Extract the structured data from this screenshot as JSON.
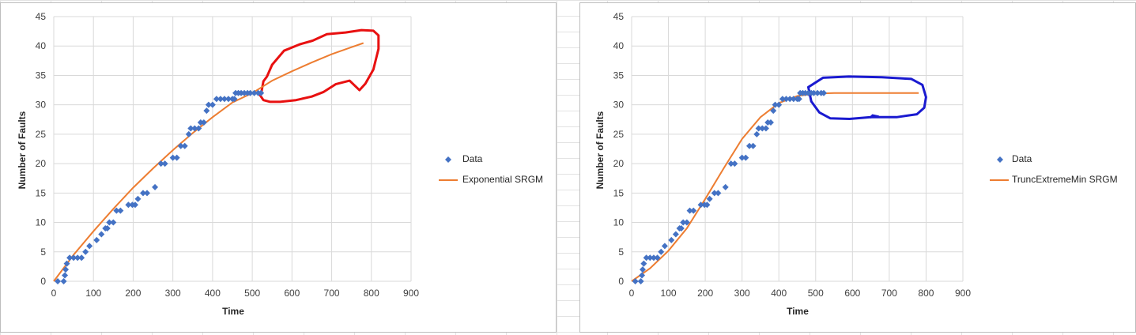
{
  "charts": [
    {
      "id": "left",
      "chart_data": {
        "type": "scatter",
        "title": "",
        "xlabel": "Time",
        "ylabel": "Number of Faults",
        "xlim": [
          0,
          900
        ],
        "ylim": [
          0,
          45
        ],
        "x_ticks": [
          "0",
          "100",
          "200",
          "300",
          "400",
          "500",
          "600",
          "700",
          "800",
          "900"
        ],
        "y_ticks": [
          "0",
          "5",
          "10",
          "15",
          "20",
          "25",
          "30",
          "35",
          "40",
          "45"
        ],
        "grid": true,
        "legend_position": "right",
        "series": [
          {
            "name": "Data",
            "kind": "scatter",
            "color": "#4472c4",
            "points": [
              [
                10,
                0
              ],
              [
                25,
                0
              ],
              [
                28,
                1
              ],
              [
                30,
                2
              ],
              [
                33,
                3
              ],
              [
                40,
                4
              ],
              [
                50,
                4
              ],
              [
                60,
                4
              ],
              [
                70,
                4
              ],
              [
                80,
                5
              ],
              [
                90,
                6
              ],
              [
                108,
                7
              ],
              [
                120,
                8
              ],
              [
                130,
                9
              ],
              [
                135,
                9
              ],
              [
                140,
                10
              ],
              [
                150,
                10
              ],
              [
                158,
                12
              ],
              [
                168,
                12
              ],
              [
                188,
                13
              ],
              [
                198,
                13
              ],
              [
                205,
                13
              ],
              [
                212,
                14
              ],
              [
                225,
                15
              ],
              [
                235,
                15
              ],
              [
                255,
                16
              ],
              [
                270,
                20
              ],
              [
                280,
                20
              ],
              [
                300,
                21
              ],
              [
                310,
                21
              ],
              [
                320,
                23
              ],
              [
                330,
                23
              ],
              [
                340,
                25
              ],
              [
                345,
                26
              ],
              [
                355,
                26
              ],
              [
                365,
                26
              ],
              [
                370,
                27
              ],
              [
                378,
                27
              ],
              [
                385,
                29
              ],
              [
                390,
                30
              ],
              [
                400,
                30
              ],
              [
                410,
                31
              ],
              [
                420,
                31
              ],
              [
                430,
                31
              ],
              [
                440,
                31
              ],
              [
                450,
                31
              ],
              [
                455,
                31
              ],
              [
                458,
                32
              ],
              [
                465,
                32
              ],
              [
                472,
                32
              ],
              [
                480,
                32
              ],
              [
                488,
                32
              ],
              [
                495,
                32
              ],
              [
                505,
                32
              ],
              [
                515,
                32
              ],
              [
                522,
                32
              ]
            ]
          },
          {
            "name": "Exponential SRGM",
            "kind": "line",
            "color": "#ed7d31",
            "points": [
              [
                0,
                0
              ],
              [
                50,
                4.5
              ],
              [
                100,
                8.5
              ],
              [
                150,
                12.3
              ],
              [
                200,
                15.9
              ],
              [
                250,
                19.2
              ],
              [
                300,
                22.3
              ],
              [
                350,
                25.2
              ],
              [
                400,
                27.9
              ],
              [
                450,
                30.4
              ],
              [
                500,
                32.0
              ],
              [
                550,
                34.1
              ],
              [
                600,
                35.7
              ],
              [
                650,
                37.2
              ],
              [
                700,
                38.6
              ],
              [
                750,
                39.8
              ],
              [
                780,
                40.5
              ]
            ]
          }
        ]
      },
      "annotation": {
        "color": "#e81010",
        "path": [
          [
            520,
            31.6
          ],
          [
            528,
            30.8
          ],
          [
            545,
            30.5
          ],
          [
            570,
            30.5
          ],
          [
            610,
            30.8
          ],
          [
            650,
            31.4
          ],
          [
            680,
            32.2
          ],
          [
            710,
            33.5
          ],
          [
            745,
            34.1
          ],
          [
            770,
            32.5
          ],
          [
            785,
            33.6
          ],
          [
            805,
            36.0
          ],
          [
            818,
            39.5
          ],
          [
            818,
            41.8
          ],
          [
            805,
            42.6
          ],
          [
            775,
            42.7
          ],
          [
            735,
            42.3
          ],
          [
            688,
            42.0
          ],
          [
            652,
            40.9
          ],
          [
            620,
            40.3
          ],
          [
            580,
            39.2
          ],
          [
            550,
            36.8
          ],
          [
            537,
            34.8
          ],
          [
            528,
            34.0
          ],
          [
            522,
            31.8
          ]
        ]
      }
    },
    {
      "id": "right",
      "chart_data": {
        "type": "scatter",
        "title": "",
        "xlabel": "Time",
        "ylabel": "Number of Faults",
        "xlim": [
          0,
          900
        ],
        "ylim": [
          0,
          45
        ],
        "x_ticks": [
          "0",
          "100",
          "200",
          "300",
          "400",
          "500",
          "600",
          "700",
          "800",
          "900"
        ],
        "y_ticks": [
          "0",
          "5",
          "10",
          "15",
          "20",
          "25",
          "30",
          "35",
          "40",
          "45"
        ],
        "grid": true,
        "legend_position": "right",
        "series": [
          {
            "name": "Data",
            "kind": "scatter",
            "color": "#4472c4",
            "points": [
              [
                10,
                0
              ],
              [
                25,
                0
              ],
              [
                28,
                1
              ],
              [
                30,
                2
              ],
              [
                33,
                3
              ],
              [
                40,
                4
              ],
              [
                50,
                4
              ],
              [
                60,
                4
              ],
              [
                70,
                4
              ],
              [
                80,
                5
              ],
              [
                90,
                6
              ],
              [
                108,
                7
              ],
              [
                120,
                8
              ],
              [
                130,
                9
              ],
              [
                135,
                9
              ],
              [
                140,
                10
              ],
              [
                150,
                10
              ],
              [
                158,
                12
              ],
              [
                168,
                12
              ],
              [
                188,
                13
              ],
              [
                198,
                13
              ],
              [
                205,
                13
              ],
              [
                212,
                14
              ],
              [
                225,
                15
              ],
              [
                235,
                15
              ],
              [
                255,
                16
              ],
              [
                270,
                20
              ],
              [
                280,
                20
              ],
              [
                300,
                21
              ],
              [
                310,
                21
              ],
              [
                320,
                23
              ],
              [
                330,
                23
              ],
              [
                340,
                25
              ],
              [
                345,
                26
              ],
              [
                355,
                26
              ],
              [
                365,
                26
              ],
              [
                370,
                27
              ],
              [
                378,
                27
              ],
              [
                385,
                29
              ],
              [
                390,
                30
              ],
              [
                400,
                30
              ],
              [
                410,
                31
              ],
              [
                420,
                31
              ],
              [
                430,
                31
              ],
              [
                440,
                31
              ],
              [
                450,
                31
              ],
              [
                455,
                31
              ],
              [
                458,
                32
              ],
              [
                465,
                32
              ],
              [
                472,
                32
              ],
              [
                480,
                32
              ],
              [
                488,
                32
              ],
              [
                495,
                32
              ],
              [
                505,
                32
              ],
              [
                515,
                32
              ],
              [
                522,
                32
              ]
            ]
          },
          {
            "name": "TruncExtremeMin SRGM",
            "kind": "line",
            "color": "#ed7d31",
            "points": [
              [
                0,
                0
              ],
              [
                50,
                2.2
              ],
              [
                100,
                5.2
              ],
              [
                150,
                9.0
              ],
              [
                200,
                14.0
              ],
              [
                250,
                19.2
              ],
              [
                300,
                24.2
              ],
              [
                350,
                27.9
              ],
              [
                400,
                30.3
              ],
              [
                450,
                31.5
              ],
              [
                500,
                31.9
              ],
              [
                550,
                32.0
              ],
              [
                780,
                32.0
              ]
            ]
          }
        ]
      },
      "annotation": {
        "color": "#1a1ad0",
        "path": [
          [
            480,
            33.0
          ],
          [
            520,
            34.6
          ],
          [
            590,
            34.8
          ],
          [
            680,
            34.7
          ],
          [
            760,
            34.4
          ],
          [
            790,
            33.4
          ],
          [
            800,
            31.3
          ],
          [
            795,
            29.5
          ],
          [
            775,
            28.4
          ],
          [
            720,
            27.9
          ],
          [
            650,
            27.9
          ],
          [
            592,
            27.6
          ],
          [
            540,
            27.7
          ],
          [
            510,
            28.7
          ],
          [
            488,
            30.6
          ],
          [
            480,
            33.0
          ]
        ],
        "tail": [
          [
            650,
            27.9
          ],
          [
            655,
            28.2
          ],
          [
            670,
            28.0
          ]
        ]
      }
    }
  ]
}
